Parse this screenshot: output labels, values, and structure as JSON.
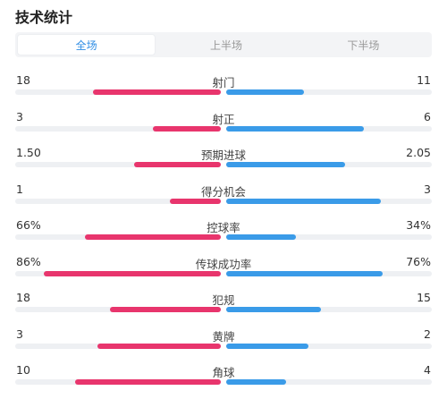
{
  "header": {
    "title": "技术统计"
  },
  "tabs": [
    {
      "label": "全场",
      "active": true
    },
    {
      "label": "上半场",
      "active": false
    },
    {
      "label": "下半场",
      "active": false
    }
  ],
  "colors": {
    "home": "#e8356d",
    "away": "#3a9be8",
    "tab_active": "#2f8de4"
  },
  "stats": [
    {
      "label": "射门",
      "home": "18",
      "away": "11",
      "home_fill": 0.62,
      "away_fill": 0.38
    },
    {
      "label": "射正",
      "home": "3",
      "away": "6",
      "home_fill": 0.33,
      "away_fill": 0.67
    },
    {
      "label": "预期进球",
      "home": "1.50",
      "away": "2.05",
      "home_fill": 0.42,
      "away_fill": 0.58
    },
    {
      "label": "得分机会",
      "home": "1",
      "away": "3",
      "home_fill": 0.25,
      "away_fill": 0.75
    },
    {
      "label": "控球率",
      "home": "66%",
      "away": "34%",
      "home_fill": 0.66,
      "away_fill": 0.34
    },
    {
      "label": "传球成功率",
      "home": "86%",
      "away": "76%",
      "home_fill": 0.86,
      "away_fill": 0.76
    },
    {
      "label": "犯规",
      "home": "18",
      "away": "15",
      "home_fill": 0.54,
      "away_fill": 0.46
    },
    {
      "label": "黄牌",
      "home": "3",
      "away": "2",
      "home_fill": 0.6,
      "away_fill": 0.4
    },
    {
      "label": "角球",
      "home": "10",
      "away": "4",
      "home_fill": 0.71,
      "away_fill": 0.29
    }
  ]
}
